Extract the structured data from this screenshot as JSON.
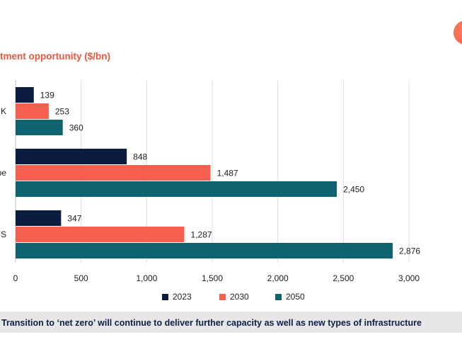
{
  "header": {
    "title": "tment opportunity ($/bn)",
    "caption": "Transition to ‘net zero’ will continue to deliver further capacity as well as new types of infrastructure"
  },
  "colors": {
    "navy": "#0b1d3f",
    "red": "#f4604d",
    "teal": "#0f6370",
    "title": "#e9573f",
    "caption_text": "#0d1f45"
  },
  "chart_data": {
    "type": "bar",
    "orientation": "horizontal",
    "title": "tment opportunity ($/bn)",
    "categories": [
      "K",
      "pe",
      "JS"
    ],
    "series": [
      {
        "name": "2023",
        "values": [
          139,
          848,
          347
        ],
        "labels": [
          "139",
          "848",
          "347"
        ]
      },
      {
        "name": "2030",
        "values": [
          253,
          1487,
          1287
        ],
        "labels": [
          "253",
          "1,487",
          "1,287"
        ]
      },
      {
        "name": "2050",
        "values": [
          360,
          2450,
          2876
        ],
        "labels": [
          "360",
          "2,450",
          "2,876"
        ]
      }
    ],
    "xlim": [
      0,
      3000
    ],
    "xticks": [
      0,
      500,
      1000,
      1500,
      2000,
      2500,
      3000
    ],
    "xtick_labels": [
      "0",
      "500",
      "1,000",
      "1,500",
      "2,000",
      "2,500",
      "3,000"
    ],
    "grid": "vertical",
    "legend": [
      "2023",
      "2030",
      "2050"
    ],
    "legend_position": "bottom"
  }
}
